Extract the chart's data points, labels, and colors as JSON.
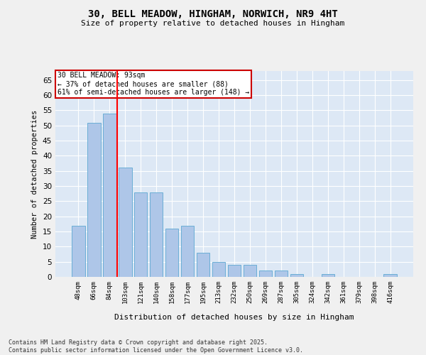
{
  "title": "30, BELL MEADOW, HINGHAM, NORWICH, NR9 4HT",
  "subtitle": "Size of property relative to detached houses in Hingham",
  "xlabel": "Distribution of detached houses by size in Hingham",
  "ylabel": "Number of detached properties",
  "categories": [
    "48sqm",
    "66sqm",
    "84sqm",
    "103sqm",
    "121sqm",
    "140sqm",
    "158sqm",
    "177sqm",
    "195sqm",
    "213sqm",
    "232sqm",
    "250sqm",
    "269sqm",
    "287sqm",
    "305sqm",
    "324sqm",
    "342sqm",
    "361sqm",
    "379sqm",
    "398sqm",
    "416sqm"
  ],
  "values": [
    17,
    51,
    54,
    36,
    28,
    28,
    16,
    17,
    8,
    5,
    4,
    4,
    2,
    2,
    1,
    0,
    1,
    0,
    0,
    0,
    1
  ],
  "bar_color": "#aec6e8",
  "bar_edge_color": "#6baed6",
  "red_line_x": 2.5,
  "annotation_line1": "30 BELL MEADOW: 93sqm",
  "annotation_line2": "← 37% of detached houses are smaller (88)",
  "annotation_line3": "61% of semi-detached houses are larger (148) →",
  "annotation_box_color": "#cc0000",
  "ylim": [
    0,
    68
  ],
  "yticks": [
    0,
    5,
    10,
    15,
    20,
    25,
    30,
    35,
    40,
    45,
    50,
    55,
    60,
    65
  ],
  "footer_line1": "Contains HM Land Registry data © Crown copyright and database right 2025.",
  "footer_line2": "Contains public sector information licensed under the Open Government Licence v3.0.",
  "bg_color": "#dde8f5",
  "fig_bg_color": "#f0f0f0"
}
